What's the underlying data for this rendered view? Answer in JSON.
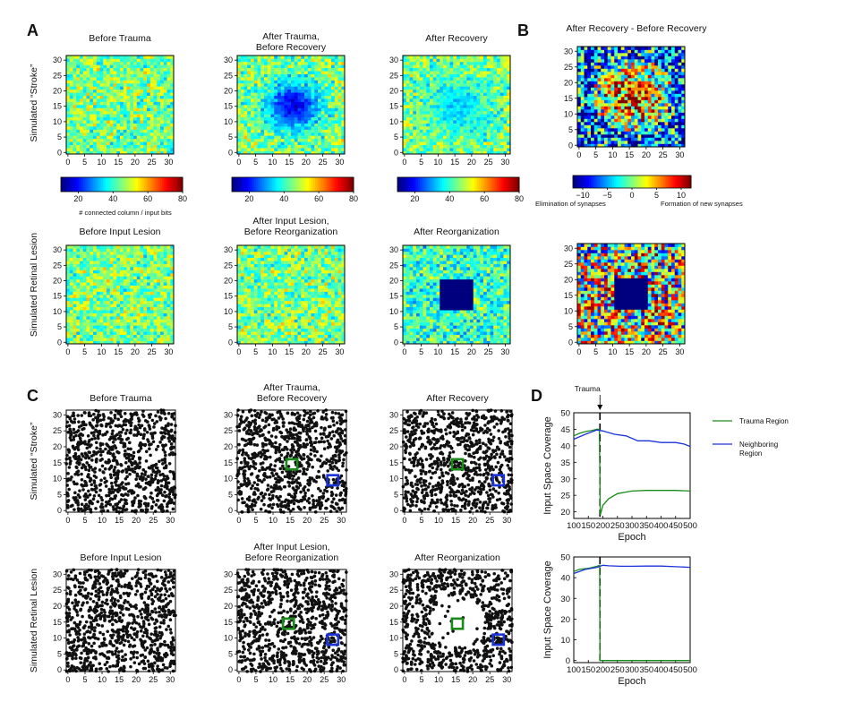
{
  "panel_letters": [
    "A",
    "B",
    "C",
    "D"
  ],
  "panel_A": {
    "row_labels": [
      "Simulated “Stroke”",
      "Simulated Retinal Lesion"
    ],
    "titles": [
      "Before Trauma",
      "After Trauma,\nBefore Recovery",
      "After Recovery",
      "Before Input Lesion",
      "After Input Lesion,\nBefore Reorganization",
      "After Reorganization"
    ],
    "tick_labels": [
      "0",
      "5",
      "10",
      "15",
      "20",
      "25",
      "30"
    ],
    "colorbar_ticks": [
      "20",
      "40",
      "60",
      "80"
    ],
    "colorbar_label": "# connected column / input bits"
  },
  "panel_B": {
    "title": "After Recovery - Before Recovery",
    "tick_labels": [
      "0",
      "5",
      "10",
      "15",
      "20",
      "25",
      "30"
    ],
    "colorbar_ticks": [
      "−10",
      "−5",
      "0",
      "5",
      "10"
    ],
    "colorbar_left_label": "Elimination of synapses",
    "colorbar_right_label": "Formation of new synapses"
  },
  "panel_C": {
    "row_labels": [
      "Simulated “Stroke”",
      "Simulated Retinal Lesion"
    ],
    "titles": [
      "Before Trauma",
      "After Trauma,\nBefore Recovery",
      "After Recovery",
      "Before Input Lesion",
      "After Input Lesion,\nBefore Reorganization",
      "After Reorganization"
    ],
    "tick_labels": [
      "0",
      "5",
      "10",
      "15",
      "20",
      "25",
      "30"
    ],
    "trauma_color": "#1a8a1a",
    "neighbor_color": "#1a33d9"
  },
  "colors": {
    "trauma": "#1a8a1a",
    "neighbor": "#1a33d9",
    "dots": "#111111"
  },
  "chart_data": [
    {
      "type": "heatmap",
      "panel": "A-top",
      "grid": [
        32,
        32
      ],
      "xlim": [
        0,
        32
      ],
      "ylim": [
        0,
        32
      ],
      "colorbar_range": [
        10,
        80
      ],
      "maps": [
        {
          "title": "Before Trauma",
          "baseline": 45,
          "center_depression": null
        },
        {
          "title": "After Trauma, Before Recovery",
          "baseline": 45,
          "center_depression": {
            "center": [
              16,
              15
            ],
            "min_value": 12
          }
        },
        {
          "title": "After Recovery",
          "baseline": 44,
          "center_depression": {
            "center": [
              16,
              15
            ],
            "min_value": 28
          }
        }
      ]
    },
    {
      "type": "heatmap",
      "panel": "A-bottom",
      "grid": [
        32,
        32
      ],
      "xlim": [
        0,
        32
      ],
      "ylim": [
        0,
        32
      ],
      "maps": [
        {
          "title": "Before Input Lesion",
          "baseline": 45,
          "lesion_square": null
        },
        {
          "title": "After Input Lesion, Before Reorganization",
          "baseline": 45,
          "lesion_square": null
        },
        {
          "title": "After Reorganization",
          "baseline": 40,
          "lesion_square": {
            "x": [
              11,
              21
            ],
            "y": [
              11,
              21
            ],
            "value": 10
          }
        }
      ]
    },
    {
      "type": "heatmap",
      "panel": "B",
      "title": "After Recovery - Before Recovery",
      "grid": [
        32,
        32
      ],
      "colorbar_range": [
        -12,
        12
      ],
      "maps": [
        {
          "description_free": true,
          "center_value": 8,
          "border_value": -8,
          "lesion_square": null
        },
        {
          "center_value": 4,
          "border_value": 0,
          "lesion_square": {
            "x": [
              11,
              21
            ],
            "y": [
              11,
              21
            ],
            "value": -12
          }
        }
      ]
    },
    {
      "type": "scatter",
      "panel": "C",
      "xlim": [
        0,
        32
      ],
      "ylim": [
        0,
        32
      ],
      "maps": [
        {
          "title": "Before Trauma",
          "points": 900,
          "empty_region": null,
          "trauma_box": null,
          "neighbor_box": null
        },
        {
          "title": "After Trauma, Before Recovery",
          "points": 900,
          "empty_region": null,
          "trauma_box": [
            16,
            15
          ],
          "neighbor_box": [
            28,
            10
          ]
        },
        {
          "title": "After Recovery",
          "points": 900,
          "empty_region": null,
          "trauma_box": [
            16,
            15
          ],
          "neighbor_box": [
            28,
            10
          ]
        },
        {
          "title": "Before Input Lesion",
          "points": 900,
          "empty_region": null,
          "trauma_box": null,
          "neighbor_box": null
        },
        {
          "title": "After Input Lesion, Before Reorganization",
          "points": 900,
          "empty_region": null,
          "trauma_box": [
            15,
            15
          ],
          "neighbor_box": [
            28,
            10
          ]
        },
        {
          "title": "After Reorganization",
          "points": 900,
          "empty_region": {
            "center": [
              16,
              16
            ],
            "radius": 8
          },
          "trauma_box": [
            16,
            15
          ],
          "neighbor_box": [
            28,
            10
          ]
        }
      ]
    },
    {
      "type": "line",
      "panel": "D-top",
      "annotation": "Trauma",
      "trauma_epoch": 190,
      "xlabel": "Epoch",
      "ylabel": "Input Space Coverage",
      "xlim": [
        100,
        500
      ],
      "ylim": [
        18,
        50
      ],
      "xticks": [
        100,
        150,
        200,
        250,
        300,
        350,
        400,
        450,
        500
      ],
      "yticks": [
        20,
        25,
        30,
        35,
        40,
        45,
        50
      ],
      "series": [
        {
          "name": "Trauma Region",
          "color": "#1a8a1a",
          "x": [
            100,
            120,
            140,
            160,
            180,
            188,
            191,
            200,
            220,
            250,
            280,
            300,
            350,
            400,
            450,
            500
          ],
          "y": [
            43,
            43.8,
            44.3,
            44.6,
            45,
            45,
            19,
            22,
            24,
            25.5,
            26,
            26.3,
            26.5,
            26.5,
            26.5,
            26.3
          ]
        },
        {
          "name": "Neighboring Region",
          "color": "#1a33d9",
          "x": [
            100,
            140,
            180,
            200,
            240,
            280,
            320,
            360,
            400,
            450,
            480,
            500
          ],
          "y": [
            42,
            43.5,
            44.8,
            44.5,
            43.5,
            43,
            41.5,
            41.5,
            41,
            41,
            40.5,
            39.8
          ]
        }
      ],
      "legend_names": [
        "Trauma Region",
        "Neighboring\nRegion"
      ]
    },
    {
      "type": "line",
      "panel": "D-bottom",
      "trauma_epoch": 190,
      "xlabel": "Epoch",
      "ylabel": "Input Space Coverage",
      "xlim": [
        100,
        500
      ],
      "ylim": [
        -1,
        50
      ],
      "xticks": [
        100,
        150,
        200,
        250,
        300,
        350,
        400,
        450,
        500
      ],
      "yticks": [
        0,
        10,
        20,
        30,
        40,
        50
      ],
      "series": [
        {
          "name": "Trauma Region",
          "color": "#1a8a1a",
          "x": [
            100,
            120,
            150,
            180,
            189,
            190,
            200,
            300,
            400,
            500
          ],
          "y": [
            43,
            44,
            44.5,
            45.5,
            46,
            0,
            0,
            0,
            0,
            0
          ]
        },
        {
          "name": "Neighboring Region",
          "color": "#1a33d9",
          "x": [
            100,
            140,
            180,
            200,
            220,
            260,
            300,
            350,
            400,
            450,
            500
          ],
          "y": [
            42,
            44,
            45,
            46,
            45.7,
            45.5,
            45.5,
            45.6,
            45.6,
            45.3,
            45
          ]
        }
      ]
    }
  ]
}
